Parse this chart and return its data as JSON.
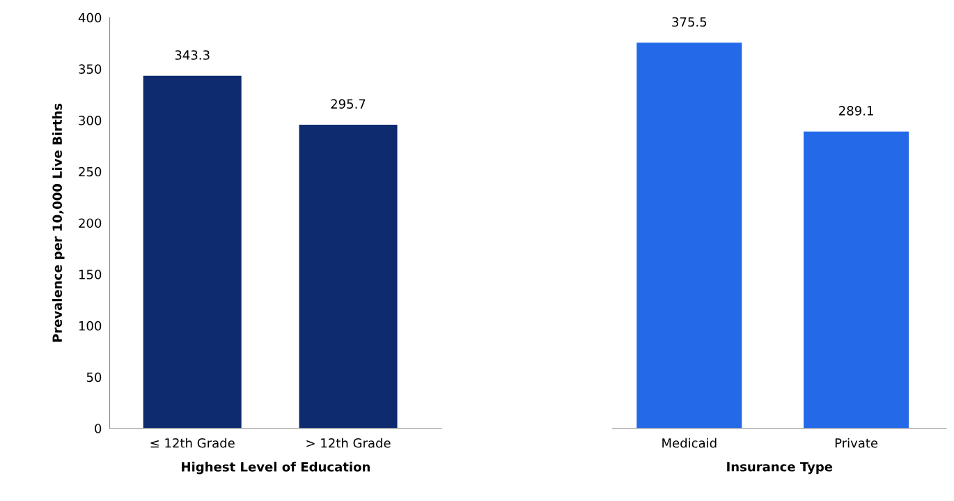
{
  "chart_data": [
    {
      "type": "bar",
      "categories": [
        "≤ 12th Grade",
        "> 12th Grade"
      ],
      "values": [
        343.3,
        295.7
      ],
      "color": "#0d2b6e",
      "ylabel": "Prevalence per 10,000 Live Births",
      "xlabel": "Highest Level of Education",
      "ylim": [
        0,
        400
      ],
      "yticks": [
        0,
        50,
        100,
        150,
        200,
        250,
        300,
        350,
        400
      ],
      "data_labels": true,
      "grid": false
    },
    {
      "type": "bar",
      "categories": [
        "Medicaid",
        "Private"
      ],
      "values": [
        375.5,
        289.1
      ],
      "color": "#2469e8",
      "xlabel": "Insurance Type",
      "ylim": [
        0,
        400
      ],
      "tick_labels": "x",
      "data_labels": true,
      "grid": false
    }
  ]
}
